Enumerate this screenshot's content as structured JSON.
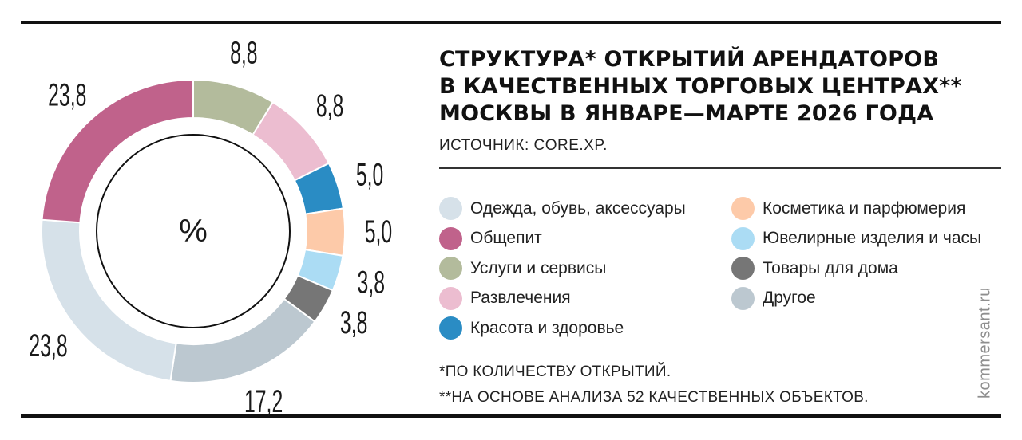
{
  "title_lines": [
    "СТРУКТУРА* ОТКРЫТИЙ АРЕНДАТОРОВ",
    "В КАЧЕСТВЕННЫХ ТОРГОВЫХ ЦЕНТРАХ**",
    "МОСКВЫ В ЯНВАРЕ—МАРТЕ 2026 ГОДА"
  ],
  "source": "ИСТОЧНИК: CORE.XP.",
  "notes": [
    "*ПО КОЛИЧЕСТВУ ОТКРЫТИЙ.",
    "**НА ОСНОВЕ АНАЛИЗА 52 КАЧЕСТВЕННЫХ ОБЪЕКТОВ."
  ],
  "credit": "kommersant.ru",
  "chart_data": {
    "type": "pie",
    "style": "donut",
    "center_label": "%",
    "value_labels": [
      "8,8",
      "8,8",
      "5,0",
      "5,0",
      "3,8",
      "3,8",
      "17,2",
      "23,8",
      "23,8"
    ],
    "slices": [
      {
        "label": "Услуги и сервисы",
        "value": 8.8,
        "color": "#b3bb9c"
      },
      {
        "label": "Развлечения",
        "value": 8.8,
        "color": "#ecbdd0"
      },
      {
        "label": "Красота и здоровье",
        "value": 5.0,
        "color": "#2a8cc4"
      },
      {
        "label": "Косметика и парфюмерия",
        "value": 5.0,
        "color": "#fdcaa9"
      },
      {
        "label": "Ювелирные изделия и часы",
        "value": 3.8,
        "color": "#abdcf4"
      },
      {
        "label": "Товары для дома",
        "value": 3.8,
        "color": "#767676"
      },
      {
        "label": "Другое",
        "value": 17.2,
        "color": "#bcc8d0"
      },
      {
        "label": "Одежда, обувь, аксессуары",
        "value": 23.8,
        "color": "#d6e1e9"
      },
      {
        "label": "Общепит",
        "value": 23.8,
        "color": "#c0628b"
      }
    ]
  },
  "legend": {
    "col1": [
      {
        "label": "Одежда, обувь, аксессуары",
        "color": "#d6e1e9"
      },
      {
        "label": "Общепит",
        "color": "#c0628b"
      },
      {
        "label": "Услуги и сервисы",
        "color": "#b3bb9c"
      },
      {
        "label": "Развлечения",
        "color": "#ecbdd0"
      },
      {
        "label": "Красота и здоровье",
        "color": "#2a8cc4"
      }
    ],
    "col2": [
      {
        "label": "Косметика и парфюмерия",
        "color": "#fdcaa9"
      },
      {
        "label": "Ювелирные изделия и часы",
        "color": "#abdcf4"
      },
      {
        "label": "Товары для дома",
        "color": "#767676"
      },
      {
        "label": "Другое",
        "color": "#bcc8d0"
      }
    ]
  }
}
